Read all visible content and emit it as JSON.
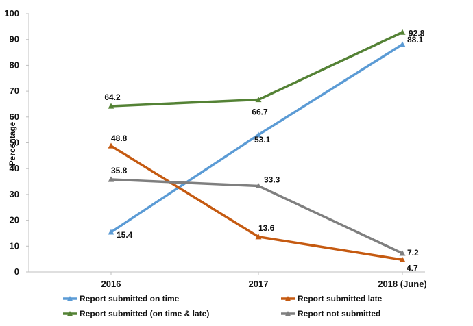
{
  "chart_data": {
    "type": "line",
    "title": "",
    "xlabel": "",
    "ylabel": "Percentage",
    "categories": [
      "2016",
      "2017",
      "2018 (June)"
    ],
    "ylim": [
      0,
      100
    ],
    "yticks": [
      0,
      10,
      20,
      30,
      40,
      50,
      60,
      70,
      80,
      90,
      100
    ],
    "grid": false,
    "legend_position": "bottom",
    "series": [
      {
        "name": "Report submitted on time",
        "values": [
          15.4,
          53.1,
          88.1
        ],
        "color": "#5b9bd5",
        "marker": "triangle"
      },
      {
        "name": "Report submitted late",
        "values": [
          48.8,
          13.6,
          4.7
        ],
        "color": "#c55a11",
        "marker": "triangle"
      },
      {
        "name": "Report submitted (on time & late)",
        "values": [
          64.2,
          66.7,
          92.8
        ],
        "color": "#548235",
        "marker": "triangle"
      },
      {
        "name": "Report not submitted",
        "values": [
          35.8,
          33.3,
          7.2
        ],
        "color": "#7f7f7f",
        "marker": "triangle"
      }
    ],
    "data_labels": [
      [
        "15.4",
        "53.1",
        "88.1"
      ],
      [
        "48.8",
        "13.6",
        "4.7"
      ],
      [
        "64.2",
        "66.7",
        "92.8"
      ],
      [
        "35.8",
        "33.3",
        "7.2"
      ]
    ]
  }
}
